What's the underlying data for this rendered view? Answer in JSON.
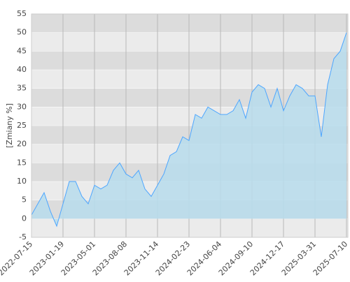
{
  "chart_data": {
    "type": "area",
    "y_label": "[Zmiany %]",
    "x": [
      "2022-07-15",
      "2022-08-22",
      "2022-09-28",
      "2022-11-04",
      "2022-12-12",
      "2023-01-19",
      "2023-02-08",
      "2023-02-28",
      "2023-03-21",
      "2023-04-10",
      "2023-05-01",
      "2023-05-21",
      "2023-06-10",
      "2023-06-30",
      "2023-07-19",
      "2023-08-08",
      "2023-08-28",
      "2023-09-16",
      "2023-10-06",
      "2023-10-25",
      "2023-11-14",
      "2023-12-04",
      "2023-12-24",
      "2024-01-13",
      "2024-02-03",
      "2024-02-23",
      "2024-03-14",
      "2024-04-03",
      "2024-04-24",
      "2024-05-14",
      "2024-06-04",
      "2024-06-24",
      "2024-07-13",
      "2024-08-02",
      "2024-08-21",
      "2024-09-10",
      "2024-09-30",
      "2024-10-19",
      "2024-11-08",
      "2024-11-27",
      "2024-12-17",
      "2025-01-07",
      "2025-01-28",
      "2025-02-18",
      "2025-03-10",
      "2025-03-31",
      "2025-04-20",
      "2025-05-10",
      "2025-05-31",
      "2025-06-20",
      "2025-07-10"
    ],
    "values": [
      1,
      4,
      7,
      2,
      -2,
      4,
      10,
      10,
      6,
      4,
      9,
      8,
      9,
      13,
      15,
      12,
      11,
      13,
      8,
      6,
      9,
      12,
      17,
      18,
      22,
      21,
      28,
      27,
      30,
      29,
      28,
      28,
      29,
      32,
      27,
      34,
      36,
      35,
      30,
      35,
      29,
      33,
      36,
      35,
      33,
      33,
      22,
      36,
      43,
      45,
      50
    ],
    "color": "#4da6ff",
    "fill": "#b7dcec",
    "ylim": [
      -5,
      55
    ],
    "yticks": [
      -5,
      0,
      5,
      10,
      15,
      20,
      25,
      30,
      35,
      40,
      45,
      50,
      55
    ],
    "xticks": [
      "2022-07-15",
      "2023-01-19",
      "2023-05-01",
      "2023-08-08",
      "2023-11-14",
      "2024-02-23",
      "2024-06-04",
      "2024-09-10",
      "2024-12-17",
      "2025-03-31",
      "2025-07-10"
    ],
    "grid": true
  }
}
